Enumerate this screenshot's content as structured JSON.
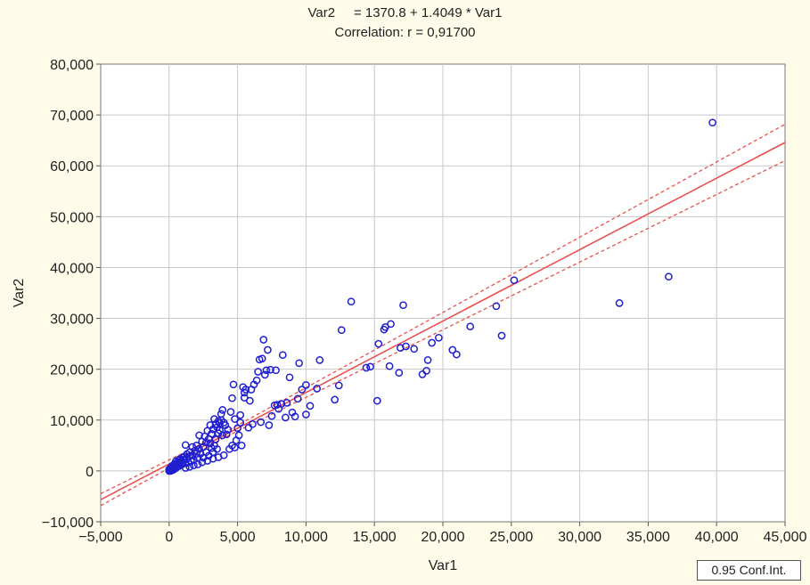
{
  "chart_data": {
    "type": "scatter",
    "title_line1": "Var2     = 1370.8 + 1.4049 * Var1",
    "title_line2": "Correlation: r = 0,91700",
    "xlabel": "Var1",
    "ylabel": "Var2",
    "xlim": [
      -5000,
      45000
    ],
    "ylim": [
      -10000,
      80000
    ],
    "x_ticks": [
      -5000,
      0,
      5000,
      10000,
      15000,
      20000,
      25000,
      30000,
      35000,
      40000,
      45000
    ],
    "x_tick_labels": [
      "−5,000",
      "0",
      "5,000",
      "10,000",
      "15,000",
      "20,000",
      "25,000",
      "30,000",
      "35,000",
      "40,000",
      "45,000"
    ],
    "y_ticks": [
      -10000,
      0,
      10000,
      20000,
      30000,
      40000,
      50000,
      60000,
      70000,
      80000
    ],
    "y_tick_labels": [
      "−10,000",
      "0",
      "10,000",
      "20,000",
      "30,000",
      "40,000",
      "50,000",
      "60,000",
      "70,000",
      "80,000"
    ],
    "grid": true,
    "legend": "0.95 Conf.Int.",
    "regression": {
      "intercept": 1370.8,
      "slope": 1.4049
    },
    "colors": {
      "points": "#1f1fcf",
      "fit": "#e8504f",
      "background": "#fffbe9",
      "grid": "#c8c8c8"
    },
    "points": [
      [
        39700,
        68500
      ],
      [
        36500,
        38200
      ],
      [
        32900,
        33000
      ],
      [
        25200,
        37500
      ],
      [
        24300,
        26600
      ],
      [
        23900,
        32400
      ],
      [
        22000,
        28400
      ],
      [
        21000,
        22900
      ],
      [
        20700,
        23800
      ],
      [
        19700,
        26200
      ],
      [
        19200,
        25200
      ],
      [
        18900,
        21800
      ],
      [
        18800,
        19700
      ],
      [
        18500,
        19000
      ],
      [
        17900,
        24000
      ],
      [
        17300,
        24500
      ],
      [
        17100,
        32600
      ],
      [
        16900,
        24200
      ],
      [
        16800,
        19300
      ],
      [
        16200,
        28900
      ],
      [
        16100,
        20600
      ],
      [
        15800,
        28300
      ],
      [
        15700,
        27800
      ],
      [
        15300,
        25000
      ],
      [
        15200,
        13800
      ],
      [
        14700,
        20500
      ],
      [
        14400,
        20300
      ],
      [
        13300,
        33300
      ],
      [
        12600,
        27700
      ],
      [
        12400,
        16800
      ],
      [
        12100,
        14000
      ],
      [
        11000,
        21800
      ],
      [
        10800,
        16200
      ],
      [
        10300,
        12800
      ],
      [
        10000,
        16900
      ],
      [
        10000,
        11100
      ],
      [
        9700,
        16000
      ],
      [
        9500,
        21200
      ],
      [
        9400,
        14200
      ],
      [
        9200,
        10700
      ],
      [
        8800,
        18400
      ],
      [
        8500,
        10500
      ],
      [
        8300,
        22800
      ],
      [
        8200,
        13200
      ],
      [
        8000,
        12200
      ],
      [
        7800,
        19800
      ],
      [
        7700,
        12900
      ],
      [
        7500,
        10800
      ],
      [
        7400,
        19900
      ],
      [
        7200,
        23800
      ],
      [
        7100,
        19800
      ],
      [
        7000,
        18900
      ],
      [
        6900,
        25800
      ],
      [
        6800,
        22100
      ],
      [
        6600,
        21900
      ],
      [
        6500,
        19500
      ],
      [
        6400,
        17800
      ],
      [
        6200,
        17000
      ],
      [
        6000,
        16000
      ],
      [
        5900,
        13800
      ],
      [
        5600,
        16000
      ],
      [
        5500,
        14400
      ],
      [
        5500,
        15400
      ],
      [
        5400,
        16500
      ],
      [
        5200,
        11000
      ],
      [
        5200,
        9500
      ],
      [
        5100,
        7000
      ],
      [
        5000,
        8400
      ],
      [
        4900,
        6000
      ],
      [
        4800,
        10200
      ],
      [
        4700,
        17000
      ],
      [
        4600,
        14300
      ],
      [
        4600,
        5000
      ],
      [
        4500,
        11600
      ],
      [
        4300,
        8100
      ],
      [
        4200,
        7200
      ],
      [
        4100,
        9000
      ],
      [
        4000,
        9500
      ],
      [
        3900,
        7000
      ],
      [
        3900,
        12000
      ],
      [
        3800,
        11200
      ],
      [
        3800,
        10000
      ],
      [
        3700,
        9400
      ],
      [
        3700,
        8000
      ],
      [
        3600,
        9800
      ],
      [
        3600,
        7400
      ],
      [
        3500,
        8600
      ],
      [
        3500,
        4300
      ],
      [
        3400,
        9200
      ],
      [
        3400,
        6200
      ],
      [
        3300,
        10200
      ],
      [
        3300,
        5000
      ],
      [
        3200,
        8200
      ],
      [
        3200,
        3700
      ],
      [
        3100,
        7300
      ],
      [
        3100,
        4500
      ],
      [
        3000,
        9000
      ],
      [
        3000,
        5400
      ],
      [
        2900,
        6300
      ],
      [
        2900,
        3000
      ],
      [
        2800,
        7900
      ],
      [
        2700,
        5600
      ],
      [
        2700,
        3700
      ],
      [
        2600,
        6800
      ],
      [
        2500,
        4700
      ],
      [
        2500,
        2600
      ],
      [
        2400,
        5800
      ],
      [
        2300,
        3400
      ],
      [
        2200,
        7000
      ],
      [
        2200,
        4300
      ],
      [
        2100,
        2600
      ],
      [
        2000,
        3400
      ],
      [
        2000,
        5000
      ],
      [
        1900,
        4000
      ],
      [
        1800,
        2200
      ],
      [
        1700,
        3100
      ],
      [
        1700,
        4700
      ],
      [
        1600,
        1900
      ],
      [
        1500,
        2900
      ],
      [
        1500,
        3700
      ],
      [
        1400,
        1700
      ],
      [
        1300,
        2300
      ],
      [
        1300,
        3300
      ],
      [
        1200,
        1500
      ],
      [
        1200,
        5100
      ],
      [
        1100,
        2200
      ],
      [
        1100,
        2800
      ],
      [
        1000,
        1400
      ],
      [
        1000,
        2600
      ],
      [
        900,
        1200
      ],
      [
        900,
        2000
      ],
      [
        800,
        1700
      ],
      [
        800,
        2400
      ],
      [
        700,
        900
      ],
      [
        700,
        1600
      ],
      [
        700,
        2100
      ],
      [
        600,
        1000
      ],
      [
        600,
        1500
      ],
      [
        500,
        600
      ],
      [
        500,
        1200
      ],
      [
        500,
        1900
      ],
      [
        400,
        400
      ],
      [
        400,
        900
      ],
      [
        400,
        1400
      ],
      [
        300,
        200
      ],
      [
        300,
        700
      ],
      [
        300,
        1100
      ],
      [
        200,
        100
      ],
      [
        200,
        500
      ],
      [
        200,
        900
      ],
      [
        100,
        0
      ],
      [
        100,
        300
      ],
      [
        100,
        600
      ],
      [
        0,
        0
      ],
      [
        0,
        300
      ],
      [
        1200,
        600
      ],
      [
        1500,
        800
      ],
      [
        1800,
        1100
      ],
      [
        2100,
        1300
      ],
      [
        2400,
        1700
      ],
      [
        2800,
        2000
      ],
      [
        3200,
        2400
      ],
      [
        3600,
        2700
      ],
      [
        4000,
        3100
      ],
      [
        4400,
        4300
      ],
      [
        4800,
        4600
      ],
      [
        5300,
        5000
      ],
      [
        5800,
        8500
      ],
      [
        6100,
        9200
      ],
      [
        6700,
        9600
      ],
      [
        7300,
        9000
      ],
      [
        7900,
        13000
      ],
      [
        8600,
        13400
      ],
      [
        9000,
        11500
      ]
    ]
  }
}
